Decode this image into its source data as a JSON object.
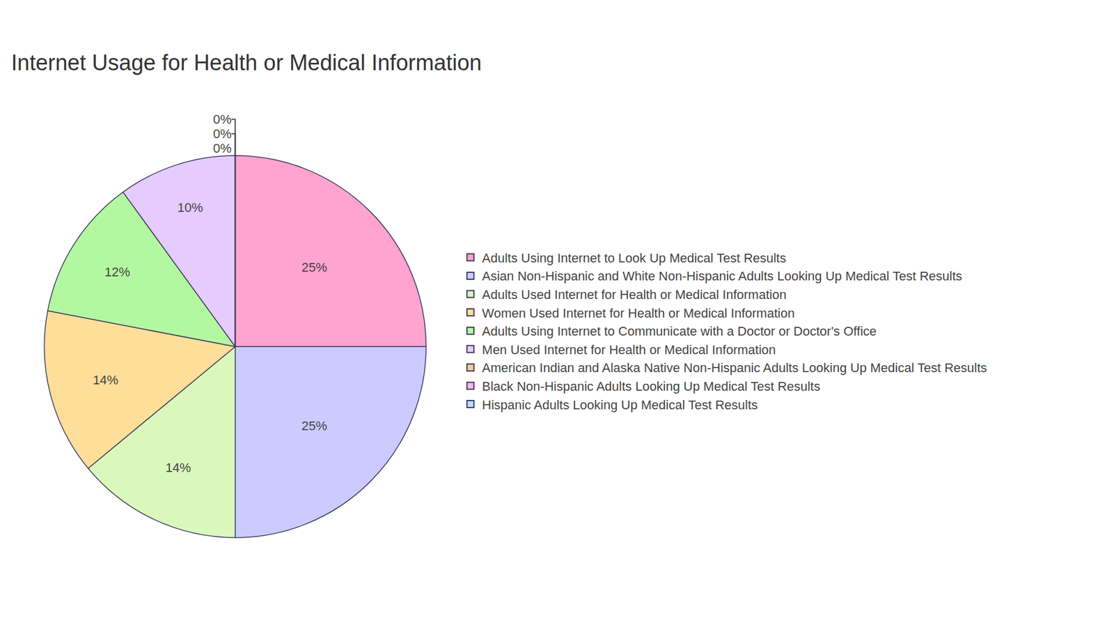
{
  "chart_data": {
    "type": "pie",
    "title": "Internet Usage for Health or Medical Information",
    "categories": [
      "Adults Using Internet to Look Up Medical Test Results",
      "Asian Non-Hispanic and White Non-Hispanic Adults Looking Up Medical Test Results",
      "Adults Used Internet for Health or Medical Information",
      "Women Used Internet for Health or Medical Information",
      "Adults Using Internet to Communicate with a Doctor or Doctor's Office",
      "Men Used Internet for Health or Medical Information",
      "American Indian and Alaska Native Non-Hispanic Adults Looking Up Medical Test Results",
      "Black Non-Hispanic Adults Looking Up Medical Test Results",
      "Hispanic Adults Looking Up Medical Test Results"
    ],
    "values": [
      25,
      25,
      14,
      14,
      12,
      10,
      0,
      0,
      0
    ],
    "value_labels": [
      "25%",
      "25%",
      "14%",
      "14%",
      "12%",
      "10%",
      "0%",
      "0%",
      "0%"
    ],
    "colors": [
      "#FFA3CF",
      "#CBCBFF",
      "#DAF8BB",
      "#FFDE99",
      "#B3F8A1",
      "#E6CBFF",
      "#FFCA99",
      "#FFB3F0",
      "#B9E1FF"
    ],
    "data_labels": true,
    "legend": "right"
  }
}
